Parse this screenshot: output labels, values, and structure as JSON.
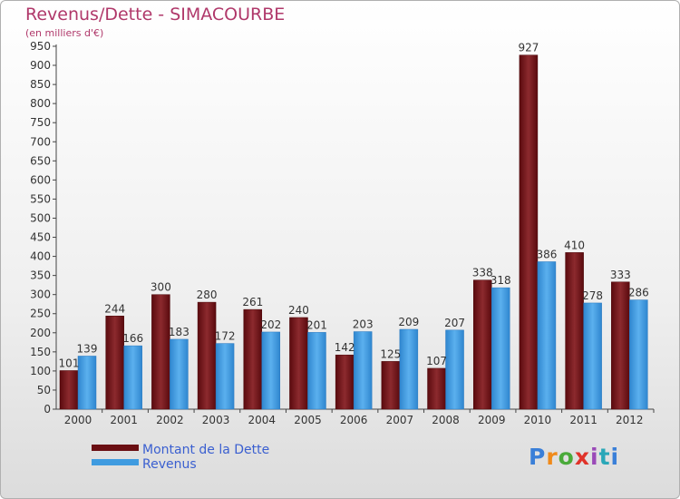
{
  "chart_data": {
    "type": "bar",
    "title": "Revenus/Dette - SIMACOURBE",
    "subtitle": "(en milliers d'€)",
    "categories": [
      "2000",
      "2001",
      "2002",
      "2003",
      "2004",
      "2005",
      "2006",
      "2007",
      "2008",
      "2009",
      "2010",
      "2011",
      "2012"
    ],
    "series": [
      {
        "name": "Montant de la Dette",
        "color": "#7a1a1e",
        "values": [
          101,
          244,
          300,
          280,
          261,
          240,
          142,
          125,
          107,
          338,
          927,
          410,
          333
        ]
      },
      {
        "name": "Revenus",
        "color": "#3f9be0",
        "values": [
          139,
          166,
          183,
          172,
          202,
          201,
          203,
          209,
          207,
          318,
          386,
          278,
          286
        ]
      }
    ],
    "ylim": [
      0,
      950
    ],
    "yticks": [
      0,
      50,
      100,
      150,
      200,
      250,
      300,
      350,
      400,
      450,
      500,
      550,
      600,
      650,
      700,
      750,
      800,
      850,
      900,
      950
    ],
    "grid": false,
    "legend_position": "bottom-left"
  },
  "logo_text": "Proxiti"
}
